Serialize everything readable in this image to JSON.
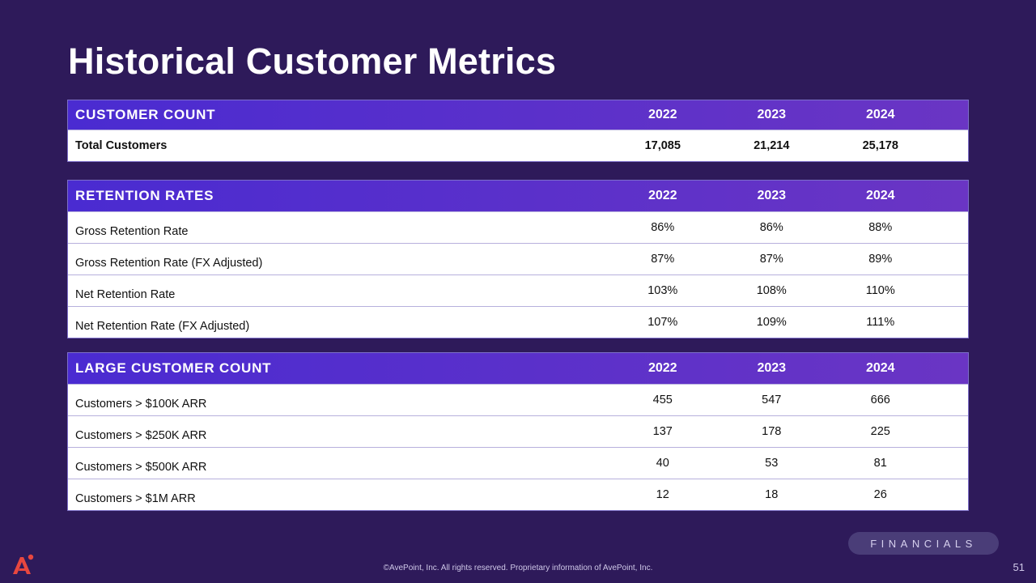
{
  "title": "Historical Customer Metrics",
  "years": [
    "2022",
    "2023",
    "2024"
  ],
  "customer_count": {
    "header": "CUSTOMER COUNT",
    "rows": [
      {
        "label": "Total Customers",
        "values": [
          "17,085",
          "21,214",
          "25,178"
        ]
      }
    ]
  },
  "retention_rates": {
    "header": "RETENTION RATES",
    "rows": [
      {
        "label": "Gross Retention Rate",
        "values": [
          "86%",
          "86%",
          "88%"
        ]
      },
      {
        "label": "Gross Retention Rate (FX Adjusted)",
        "values": [
          "87%",
          "87%",
          "89%"
        ]
      },
      {
        "label": "Net Retention Rate",
        "values": [
          "103%",
          "108%",
          "110%"
        ]
      },
      {
        "label": "Net Retention Rate (FX Adjusted)",
        "values": [
          "107%",
          "109%",
          "111%"
        ]
      }
    ]
  },
  "large_customer_count": {
    "header": "LARGE CUSTOMER COUNT",
    "rows": [
      {
        "label": "Customers > $100K ARR",
        "values": [
          "455",
          "547",
          "666"
        ]
      },
      {
        "label": "Customers > $250K ARR",
        "values": [
          "137",
          "178",
          "225"
        ]
      },
      {
        "label": "Customers > $500K ARR",
        "values": [
          "40",
          "53",
          "81"
        ]
      },
      {
        "label": "Customers > $1M ARR",
        "values": [
          "12",
          "18",
          "26"
        ]
      }
    ]
  },
  "section_tag": "FINANCIALS",
  "footer": "©AvePoint, Inc. All rights reserved. Proprietary information of AvePoint, Inc.",
  "page_number": "51",
  "colors": {
    "background": "#2e1a5a",
    "header_start": "#4a2bd1",
    "header_end": "#6a35c4",
    "logo": "#e8473f"
  }
}
